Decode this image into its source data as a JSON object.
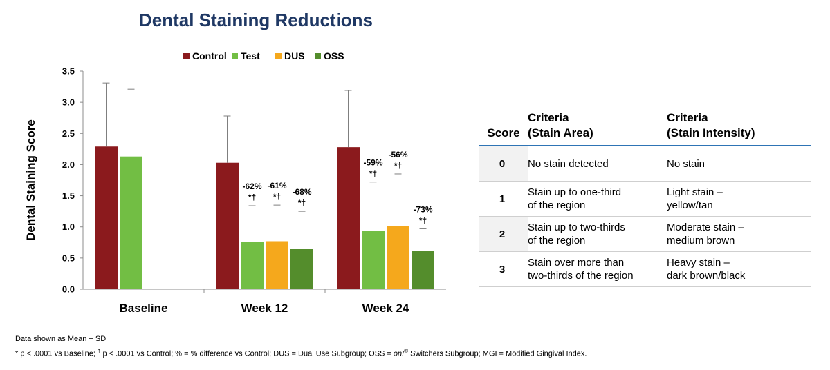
{
  "title": "Dental Staining Reductions",
  "chart_data": {
    "type": "bar",
    "ylabel": "Dental Staining Score",
    "xlabel": "",
    "ylim": [
      0,
      3.5
    ],
    "yticks": [
      "0.0",
      "0.5",
      "1.0",
      "1.5",
      "2.0",
      "2.5",
      "3.0",
      "3.5"
    ],
    "ytick_values": [
      0,
      0.5,
      1.0,
      1.5,
      2.0,
      2.5,
      3.0,
      3.5
    ],
    "categories": [
      "Baseline",
      "Week 12",
      "Week 24"
    ],
    "legend_position": "top",
    "series": [
      {
        "name": "Control",
        "color": "#8b1a1d",
        "values": [
          2.29,
          2.03,
          2.28
        ],
        "errors": [
          1.02,
          0.75,
          0.91
        ],
        "labels": [
          "",
          "",
          ""
        ]
      },
      {
        "name": "Test",
        "color": "#72be44",
        "values": [
          2.13,
          0.76,
          0.94
        ],
        "errors": [
          1.08,
          0.58,
          0.78
        ],
        "labels": [
          "",
          "-62%\n*†",
          "-59%\n*†"
        ]
      },
      {
        "name": "DUS",
        "color": "#f5a81c",
        "values": [
          null,
          0.77,
          1.01
        ],
        "errors": [
          null,
          0.58,
          0.84
        ],
        "labels": [
          "",
          "-61%\n*†",
          "-56%\n*†"
        ]
      },
      {
        "name": "OSS",
        "color": "#548d2c",
        "values": [
          null,
          0.65,
          0.62
        ],
        "errors": [
          null,
          0.6,
          0.35
        ],
        "labels": [
          "",
          "-68%\n*†",
          "-73%\n*†"
        ]
      }
    ]
  },
  "table": {
    "headers": {
      "score": "Score",
      "area_line1": "Criteria",
      "area_line2": "(Stain Area)",
      "intensity_line1": "Criteria",
      "intensity_line2": "(Stain Intensity)"
    },
    "rows": [
      {
        "score": "0",
        "area1": "No stain detected",
        "area2": "",
        "int1": "No stain",
        "int2": ""
      },
      {
        "score": "1",
        "area1": "Stain up to one-third",
        "area2": "of the region",
        "int1": "Light stain –",
        "int2": "yellow/tan"
      },
      {
        "score": "2",
        "area1": "Stain up to two-thirds",
        "area2": "of the region",
        "int1": "Moderate stain –",
        "int2": "medium brown"
      },
      {
        "score": "3",
        "area1": "Stain over more than",
        "area2": "two-thirds of the region",
        "int1": "Heavy stain –",
        "int2": "dark brown/black"
      }
    ]
  },
  "footnote": {
    "line1": "Data shown as Mean + SD",
    "line2_a": "* p < .0001 vs Baseline; ",
    "line2_dagger": "†",
    "line2_b": " p < .0001 vs Control; % = % difference vs Control; DUS = Dual Use Subgroup; OSS = ",
    "line2_on": "on!",
    "line2_reg": "®",
    "line2_c": " Switchers Subgroup; MGI = Modified Gingival Index."
  }
}
